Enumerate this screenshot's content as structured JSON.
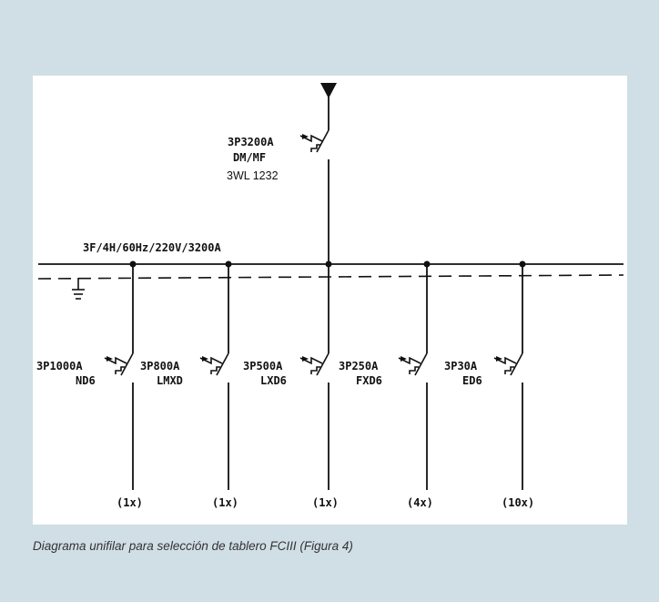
{
  "diagram": {
    "main_breaker": {
      "rating": "3P3200A",
      "type": "DM/MF",
      "model": "3WL 1232"
    },
    "bus_label": "3F/4H/60Hz/220V/3200A",
    "feeders": [
      {
        "rating": "3P1000A",
        "model": "ND6",
        "qty": "(1x)"
      },
      {
        "rating": "3P800A",
        "model": "LMXD",
        "qty": "(1x)"
      },
      {
        "rating": "3P500A",
        "model": "LXD6",
        "qty": "(1x)"
      },
      {
        "rating": "3P250A",
        "model": "FXD6",
        "qty": "(4x)"
      },
      {
        "rating": "3P30A",
        "model": "ED6",
        "qty": "(10x)"
      }
    ]
  },
  "caption": "Diagrama unifilar para selección de tablero FCIII (Figura 4)"
}
